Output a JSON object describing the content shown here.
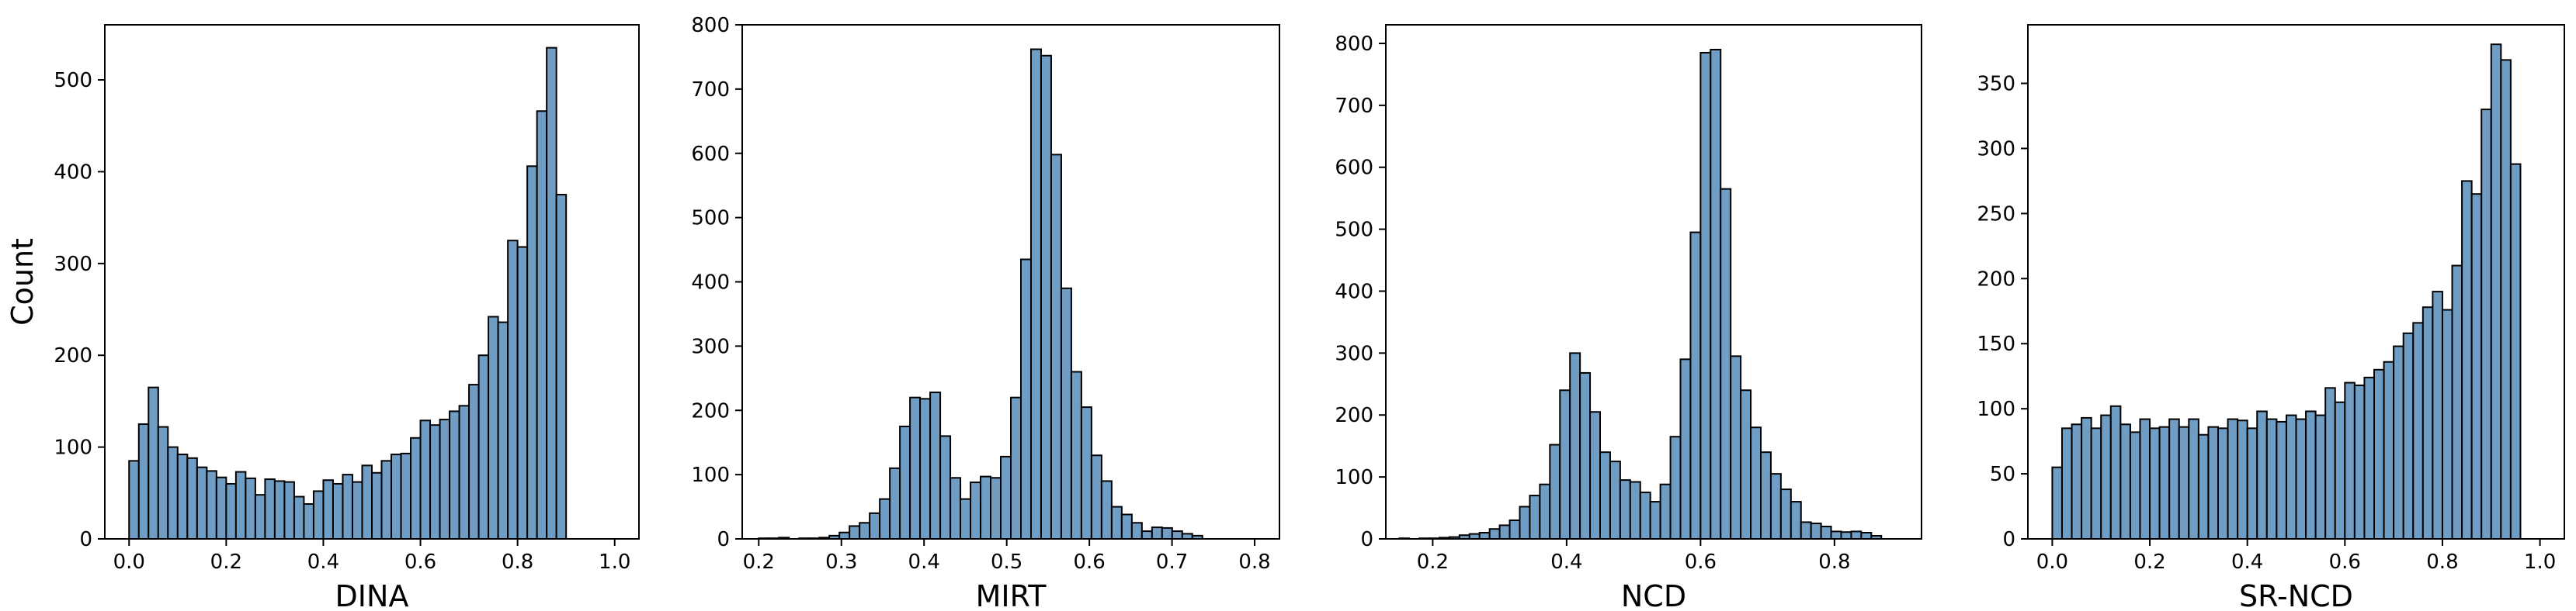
{
  "colors": {
    "bar_fill": "#6f9dc3",
    "bar_edge": "#000000",
    "axes": "#000000",
    "background": "#ffffff"
  },
  "chart_data": [
    {
      "type": "bar",
      "xlabel": "DINA",
      "ylabel": "Count",
      "xlim": [
        -0.05,
        1.05
      ],
      "ylim": [
        0,
        560
      ],
      "xticks": [
        "0.0",
        "0.2",
        "0.4",
        "0.6",
        "0.8",
        "1.0"
      ],
      "yticks": [
        "0",
        "100",
        "200",
        "300",
        "400",
        "500"
      ],
      "bin_start": 0.0,
      "bin_width": 0.02,
      "values": [
        85,
        125,
        165,
        122,
        100,
        92,
        88,
        78,
        74,
        67,
        60,
        73,
        66,
        48,
        65,
        63,
        62,
        46,
        38,
        52,
        64,
        60,
        70,
        62,
        80,
        72,
        85,
        92,
        93,
        110,
        129,
        124,
        130,
        139,
        145,
        168,
        200,
        242,
        236,
        325,
        318,
        406,
        466,
        535,
        375
      ]
    },
    {
      "type": "bar",
      "xlabel": "MIRT",
      "ylabel": "",
      "xlim": [
        0.18,
        0.83
      ],
      "ylim": [
        0,
        800
      ],
      "xticks": [
        "0.2",
        "0.3",
        "0.4",
        "0.5",
        "0.6",
        "0.7",
        "0.8"
      ],
      "yticks": [
        "0",
        "100",
        "200",
        "300",
        "400",
        "500",
        "600",
        "700",
        "800"
      ],
      "bin_start": 0.2,
      "bin_width": 0.0122,
      "values": [
        1,
        1,
        2,
        0,
        1,
        1,
        2,
        5,
        10,
        20,
        25,
        40,
        62,
        110,
        175,
        220,
        218,
        228,
        160,
        95,
        62,
        88,
        97,
        95,
        128,
        220,
        435,
        762,
        752,
        598,
        390,
        260,
        205,
        130,
        90,
        50,
        38,
        25,
        12,
        18,
        17,
        12,
        8,
        5
      ]
    },
    {
      "type": "bar",
      "xlabel": "NCD",
      "ylabel": "",
      "xlim": [
        0.13,
        0.93
      ],
      "ylim": [
        0,
        830
      ],
      "xticks": [
        "0.2",
        "0.4",
        "0.6",
        "0.8"
      ],
      "yticks": [
        "0",
        "100",
        "200",
        "300",
        "400",
        "500",
        "600",
        "700",
        "800"
      ],
      "bin_start": 0.15,
      "bin_width": 0.015,
      "values": [
        1,
        0,
        1,
        1,
        2,
        3,
        6,
        8,
        10,
        16,
        22,
        30,
        52,
        70,
        88,
        152,
        240,
        300,
        268,
        205,
        140,
        125,
        95,
        92,
        75,
        60,
        88,
        165,
        290,
        495,
        785,
        790,
        565,
        295,
        240,
        180,
        140,
        105,
        80,
        60,
        27,
        25,
        20,
        12,
        11,
        12,
        10,
        5
      ]
    },
    {
      "type": "bar",
      "xlabel": "SR-NCD",
      "ylabel": "",
      "xlim": [
        -0.05,
        1.05
      ],
      "ylim": [
        0,
        395
      ],
      "xticks": [
        "0.0",
        "0.2",
        "0.4",
        "0.6",
        "0.8",
        "1.0"
      ],
      "yticks": [
        "0",
        "50",
        "100",
        "150",
        "200",
        "250",
        "300",
        "350"
      ],
      "bin_start": 0.0,
      "bin_width": 0.02,
      "values": [
        55,
        85,
        88,
        93,
        85,
        95,
        102,
        88,
        82,
        92,
        85,
        86,
        92,
        86,
        92,
        80,
        86,
        85,
        92,
        91,
        85,
        98,
        92,
        90,
        95,
        92,
        98,
        95,
        116,
        105,
        120,
        118,
        124,
        130,
        136,
        148,
        158,
        166,
        178,
        190,
        176,
        210,
        275,
        265,
        330,
        380,
        368,
        288
      ]
    }
  ]
}
